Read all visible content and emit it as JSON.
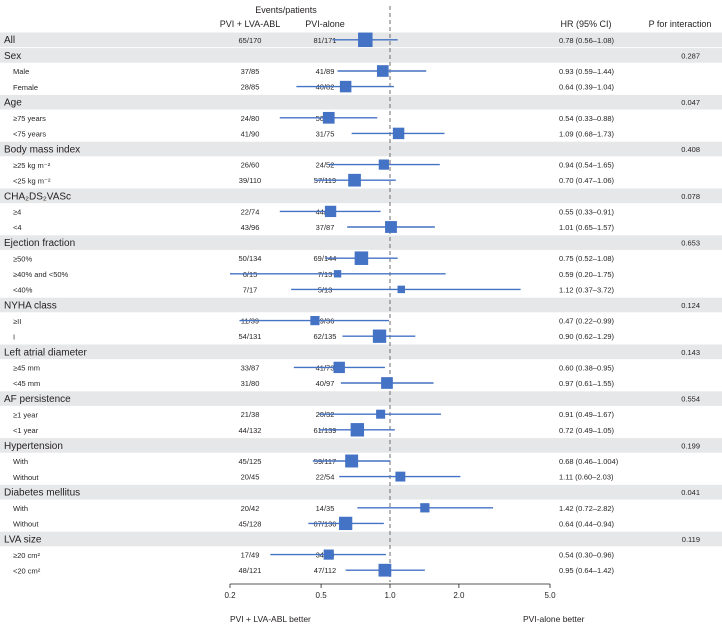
{
  "header": {
    "events_title": "Events/patients",
    "col_arm1": "PVI + LVA-ABL",
    "col_arm2": "PVI-alone",
    "col_hr": "HR (95% CI)",
    "col_p": "P for interaction"
  },
  "footer": {
    "left_label": "PVI + LVA-ABL better",
    "right_label": "PVI-alone better"
  },
  "chart_data": {
    "type": "forest",
    "scale": "log",
    "x_ticks": [
      0.2,
      0.5,
      1.0,
      2.0,
      5.0
    ],
    "x_tick_labels": [
      "0.2",
      "0.5",
      "1.0",
      "2.0",
      "5.0"
    ],
    "reference_line": 1.0,
    "xlim": [
      0.2,
      5.0
    ],
    "rows": [
      {
        "kind": "overall",
        "label": "All",
        "arm1": "65/170",
        "arm2": "81/171",
        "hr": 0.78,
        "lo": 0.56,
        "hi": 1.08,
        "hr_text": "0.78 (0.56–1.08)",
        "n": 341
      },
      {
        "kind": "group",
        "label": "Sex",
        "p": "0.287"
      },
      {
        "kind": "sub",
        "label": "Male",
        "arm1": "37/85",
        "arm2": "41/89",
        "hr": 0.93,
        "lo": 0.59,
        "hi": 1.44,
        "hr_text": "0.93 (0.59–1.44)",
        "n": 174
      },
      {
        "kind": "sub",
        "label": "Female",
        "arm1": "28/85",
        "arm2": "40/82",
        "hr": 0.64,
        "lo": 0.39,
        "hi": 1.04,
        "hr_text": "0.64 (0.39–1.04)",
        "n": 167
      },
      {
        "kind": "group",
        "label": "Age",
        "p": "0.047"
      },
      {
        "kind": "sub",
        "label": "≥75 years",
        "arm1": "24/80",
        "arm2": "50/96",
        "hr": 0.54,
        "lo": 0.33,
        "hi": 0.88,
        "hr_text": "0.54 (0.33–0.88)",
        "n": 176
      },
      {
        "kind": "sub",
        "label": "<75 years",
        "arm1": "41/90",
        "arm2": "31/75",
        "hr": 1.09,
        "lo": 0.68,
        "hi": 1.73,
        "hr_text": "1.09 (0.68–1.73)",
        "n": 165
      },
      {
        "kind": "group",
        "label": "Body mass index",
        "p": "0.408"
      },
      {
        "kind": "sub",
        "label": "≥25 kg m⁻²",
        "arm1": "26/60",
        "arm2": "24/52",
        "hr": 0.94,
        "lo": 0.54,
        "hi": 1.65,
        "hr_text": "0.94 (0.54–1.65)",
        "n": 112
      },
      {
        "kind": "sub",
        "label": "<25 kg m⁻²",
        "arm1": "39/110",
        "arm2": "57/119",
        "hr": 0.7,
        "lo": 0.47,
        "hi": 1.06,
        "hr_text": "0.70 (0.47–1.06)",
        "n": 229
      },
      {
        "kind": "group",
        "label": "CHA₂DS₂VASc",
        "p": "0.078"
      },
      {
        "kind": "sub",
        "label": "≥4",
        "arm1": "22/74",
        "arm2": "44/84",
        "hr": 0.55,
        "lo": 0.33,
        "hi": 0.91,
        "hr_text": "0.55 (0.33–0.91)",
        "n": 158
      },
      {
        "kind": "sub",
        "label": "<4",
        "arm1": "43/96",
        "arm2": "37/87",
        "hr": 1.01,
        "lo": 0.65,
        "hi": 1.57,
        "hr_text": "1.01 (0.65–1.57)",
        "n": 183
      },
      {
        "kind": "group",
        "label": "Ejection fraction",
        "p": "0.653"
      },
      {
        "kind": "sub",
        "label": "≥50%",
        "arm1": "50/134",
        "arm2": "69/144",
        "hr": 0.75,
        "lo": 0.52,
        "hi": 1.08,
        "hr_text": "0.75 (0.52–1.08)",
        "n": 278
      },
      {
        "kind": "sub",
        "label": "≥40% and <50%",
        "arm1": "6/15",
        "arm2": "7/13",
        "hr": 0.59,
        "lo": 0.2,
        "hi": 1.75,
        "hr_text": "0.59 (0.20–1.75)",
        "n": 28
      },
      {
        "kind": "sub",
        "label": "<40%",
        "arm1": "7/17",
        "arm2": "5/13",
        "hr": 1.12,
        "lo": 0.37,
        "hi": 3.72,
        "hr_text": "1.12 (0.37–3.72)",
        "n": 30
      },
      {
        "kind": "group",
        "label": "NYHA class",
        "p": "0.124"
      },
      {
        "kind": "sub",
        "label": "≥II",
        "arm1": "11/39",
        "arm2": "19/36",
        "hr": 0.47,
        "lo": 0.22,
        "hi": 0.99,
        "hr_text": "0.47 (0.22–0.99)",
        "n": 75
      },
      {
        "kind": "sub",
        "label": "I",
        "arm1": "54/131",
        "arm2": "62/135",
        "hr": 0.9,
        "lo": 0.62,
        "hi": 1.29,
        "hr_text": "0.90 (0.62–1.29)",
        "n": 266
      },
      {
        "kind": "group",
        "label": "Left atrial diameter",
        "p": "0.143"
      },
      {
        "kind": "sub",
        "label": "≥45 mm",
        "arm1": "33/87",
        "arm2": "41/73",
        "hr": 0.6,
        "lo": 0.38,
        "hi": 0.95,
        "hr_text": "0.60 (0.38–0.95)",
        "n": 160
      },
      {
        "kind": "sub",
        "label": "<45 mm",
        "arm1": "31/80",
        "arm2": "40/97",
        "hr": 0.97,
        "lo": 0.61,
        "hi": 1.55,
        "hr_text": "0.97 (0.61–1.55)",
        "n": 177
      },
      {
        "kind": "group",
        "label": "AF persistence",
        "p": "0.554"
      },
      {
        "kind": "sub",
        "label": "≥1 year",
        "arm1": "21/38",
        "arm2": "20/32",
        "hr": 0.91,
        "lo": 0.49,
        "hi": 1.67,
        "hr_text": "0.91 (0.49–1.67)",
        "n": 70
      },
      {
        "kind": "sub",
        "label": "<1 year",
        "arm1": "44/132",
        "arm2": "61/139",
        "hr": 0.72,
        "lo": 0.49,
        "hi": 1.05,
        "hr_text": "0.72 (0.49–1.05)",
        "n": 271
      },
      {
        "kind": "group",
        "label": "Hypertension",
        "p": "0.199"
      },
      {
        "kind": "sub",
        "label": "With",
        "arm1": "45/125",
        "arm2": "59/117",
        "hr": 0.68,
        "lo": 0.46,
        "hi": 1.004,
        "hr_text": "0.68 (0.46–1.004)",
        "n": 242
      },
      {
        "kind": "sub",
        "label": "Without",
        "arm1": "20/45",
        "arm2": "22/54",
        "hr": 1.11,
        "lo": 0.6,
        "hi": 2.03,
        "hr_text": "1.11 (0.60–2.03)",
        "n": 99
      },
      {
        "kind": "group",
        "label": "Diabetes mellitus",
        "p": "0.041"
      },
      {
        "kind": "sub",
        "label": "With",
        "arm1": "20/42",
        "arm2": "14/35",
        "hr": 1.42,
        "lo": 0.72,
        "hi": 2.82,
        "hr_text": "1.42 (0.72–2.82)",
        "n": 77
      },
      {
        "kind": "sub",
        "label": "Without",
        "arm1": "45/128",
        "arm2": "67/136",
        "hr": 0.64,
        "lo": 0.44,
        "hi": 0.94,
        "hr_text": "0.64 (0.44–0.94)",
        "n": 264
      },
      {
        "kind": "group",
        "label": "LVA size",
        "p": "0.119"
      },
      {
        "kind": "sub",
        "label": "≥20 cm²",
        "arm1": "17/49",
        "arm2": "34/59",
        "hr": 0.54,
        "lo": 0.3,
        "hi": 0.96,
        "hr_text": "0.54 (0.30–0.96)",
        "n": 108
      },
      {
        "kind": "sub",
        "label": "<20 cm²",
        "arm1": "48/121",
        "arm2": "47/112",
        "hr": 0.95,
        "lo": 0.64,
        "hi": 1.42,
        "hr_text": "0.95 (0.64–1.42)",
        "n": 233
      }
    ]
  }
}
